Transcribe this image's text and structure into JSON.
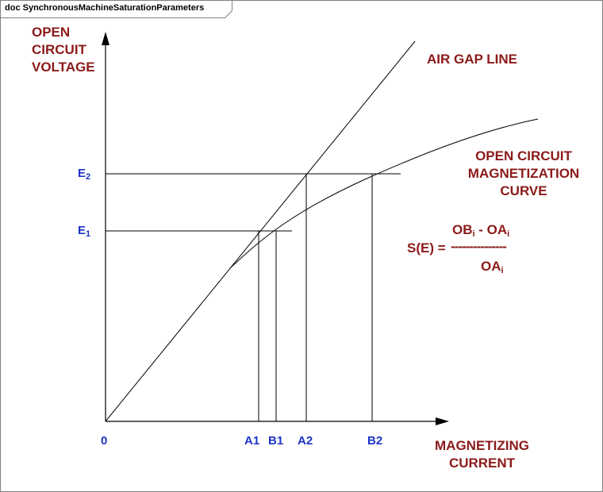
{
  "frame": {
    "title": "doc SynchronousMachineSaturationParameters"
  },
  "y_axis_label": [
    "OPEN",
    "CIRCUIT",
    "VOLTAGE"
  ],
  "x_axis_label": [
    "MAGNETIZING",
    "CURRENT"
  ],
  "air_gap_label": "AIR GAP LINE",
  "occ_label": [
    "OPEN CIRCUIT",
    "MAGNETIZATION",
    "CURVE"
  ],
  "y_ticks": [
    {
      "base": "E",
      "sub": "2"
    },
    {
      "base": "E",
      "sub": "1"
    }
  ],
  "x_ticks": [
    "0",
    "A1",
    "B1",
    "A2",
    "B2"
  ],
  "formula": {
    "lhs": "S(E) =",
    "numerator": {
      "t1": "OB",
      "s1": "i",
      "op": " - ",
      "t2": "OA",
      "s2": "i"
    },
    "bar": "---------------",
    "denominator": {
      "t": "OA",
      "s": "i"
    }
  },
  "colors": {
    "labels": "#8b1a1a",
    "ticks": "#1f33c7",
    "lines": "#000000"
  }
}
